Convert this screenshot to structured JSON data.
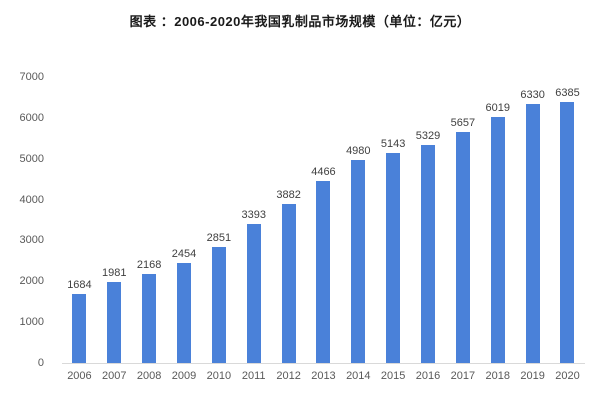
{
  "chart_data": {
    "type": "bar",
    "title": "图表 ：2006-2020年我国乳制品市场规模（单位：亿元）",
    "categories": [
      "2006",
      "2007",
      "2008",
      "2009",
      "2010",
      "2011",
      "2012",
      "2013",
      "2014",
      "2015",
      "2016",
      "2017",
      "2018",
      "2019",
      "2020"
    ],
    "values": [
      1684,
      1981,
      2168,
      2454,
      2851,
      3393,
      3882,
      4466,
      4980,
      5143,
      5329,
      5657,
      6019,
      6330,
      6385
    ],
    "xlabel": "",
    "ylabel": "",
    "ylim": [
      0,
      7000
    ],
    "yticks": [
      0,
      1000,
      2000,
      3000,
      4000,
      5000,
      6000,
      7000
    ],
    "grid": false,
    "legend": "none",
    "data_labels": true,
    "colors": {
      "bar": "#4a81d9",
      "axis_line": "#d9d9d9",
      "tick_label": "#595959",
      "data_label": "#404040",
      "title": "#1a1a1a"
    }
  }
}
